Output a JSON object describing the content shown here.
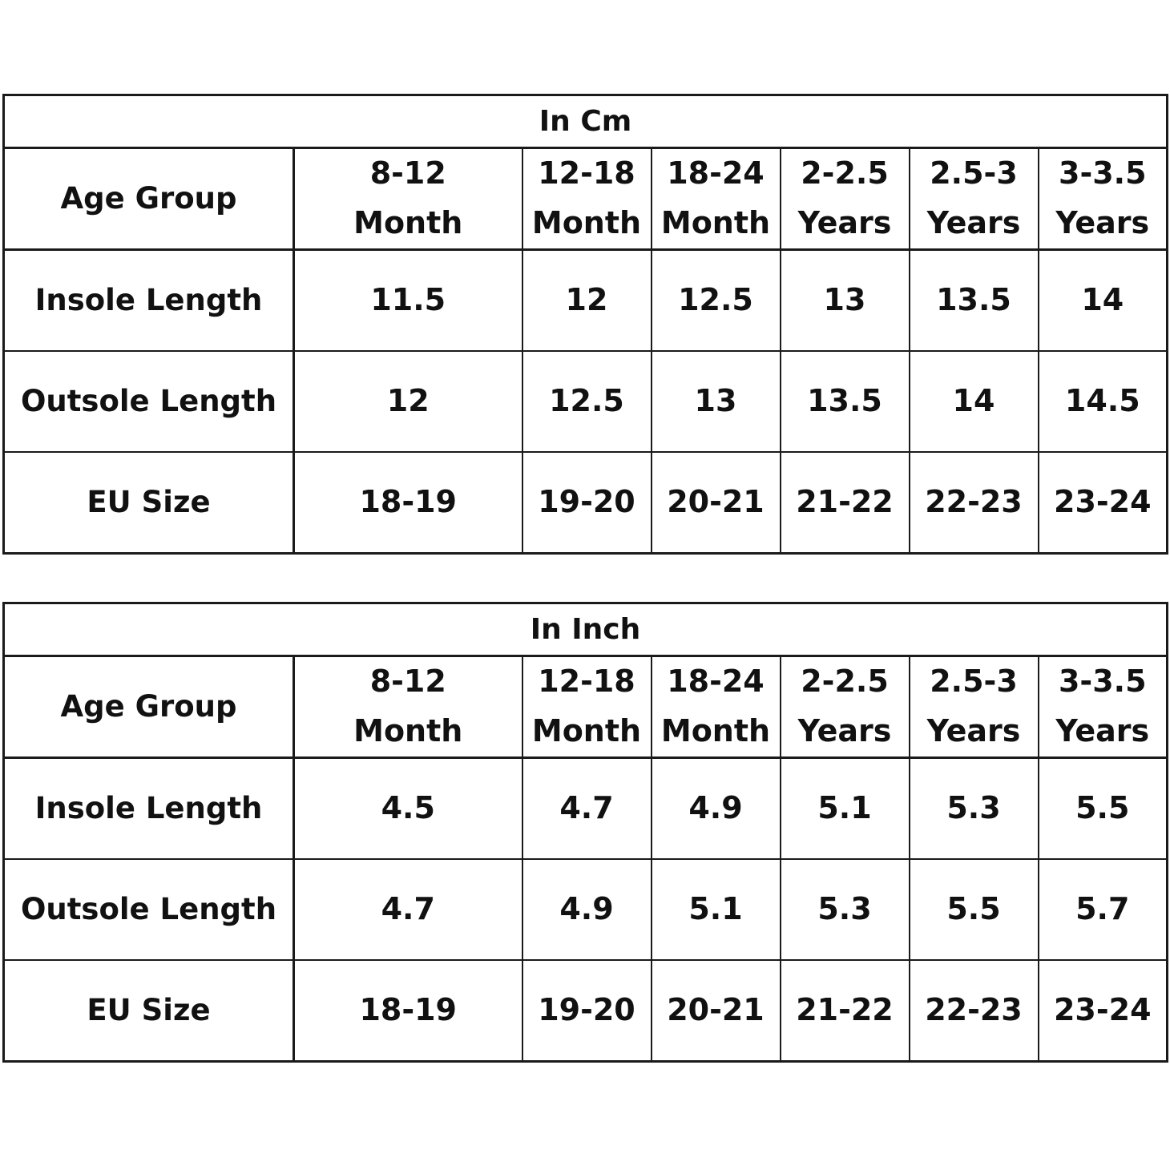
{
  "columns": [
    "8-12\nMonth",
    "12-18\nMonth",
    "18-24\nMonth",
    "2-2.5\nYears",
    "2.5-3\nYears",
    "3-3.5\nYears"
  ],
  "tables": [
    {
      "title": "In Cm",
      "age_label": "Age Group",
      "rows": [
        {
          "label": "Insole Length",
          "values": [
            "11.5",
            "12",
            "12.5",
            "13",
            "13.5",
            "14"
          ]
        },
        {
          "label": "Outsole Length",
          "values": [
            "12",
            "12.5",
            "13",
            "13.5",
            "14",
            "14.5"
          ]
        },
        {
          "label": "EU Size",
          "values": [
            "18-19",
            "19-20",
            "20-21",
            "21-22",
            "22-23",
            "23-24"
          ]
        }
      ]
    },
    {
      "title": "In Inch",
      "age_label": "Age Group",
      "rows": [
        {
          "label": "Insole Length",
          "values": [
            "4.5",
            "4.7",
            "4.9",
            "5.1",
            "5.3",
            "5.5"
          ]
        },
        {
          "label": "Outsole Length",
          "values": [
            "4.7",
            "4.9",
            "5.1",
            "5.3",
            "5.5",
            "5.7"
          ]
        },
        {
          "label": "EU Size",
          "values": [
            "18-19",
            "19-20",
            "20-21",
            "21-22",
            "22-23",
            "23-24"
          ]
        }
      ]
    }
  ]
}
